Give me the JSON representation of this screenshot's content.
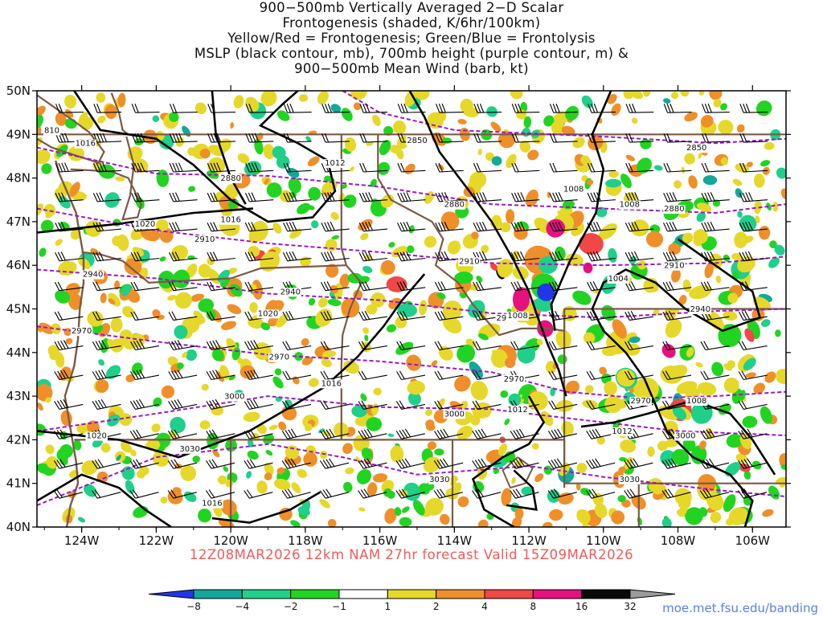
{
  "title": {
    "line1": "900−500mb Vertically Averaged 2−D Scalar",
    "line2": "Frontogenesis (shaded, K/6hr/100km)",
    "line3": "Yellow/Red = Frontogenesis;  Green/Blue = Frontolysis",
    "line4": "MSLP (black contour, mb), 700mb height (purple contour, m) &",
    "line5": "900−500mb Mean Wind (barb, kt)"
  },
  "map": {
    "lat_labels": [
      "50N",
      "49N",
      "48N",
      "47N",
      "46N",
      "45N",
      "44N",
      "43N",
      "42N",
      "41N",
      "40N"
    ],
    "lon_labels": [
      "124W",
      "122W",
      "120W",
      "118W",
      "116W",
      "114W",
      "112W",
      "110W",
      "108W",
      "106W"
    ],
    "colors": {
      "coast": "#7a5a45",
      "mslp": "#000000",
      "height": "#9a18c8"
    },
    "height_labels": [
      {
        "t": "2850",
        "lon": -115.0,
        "lat": 48.87
      },
      {
        "t": "2850",
        "lon": -107.5,
        "lat": 48.7
      },
      {
        "t": "2880",
        "lon": -120.0,
        "lat": 48.0
      },
      {
        "t": "2880",
        "lon": -114.0,
        "lat": 47.4
      },
      {
        "t": "2880",
        "lon": -108.1,
        "lat": 47.3
      },
      {
        "t": "2910",
        "lon": -120.7,
        "lat": 46.6
      },
      {
        "t": "2910",
        "lon": -113.6,
        "lat": 46.1
      },
      {
        "t": "2910",
        "lon": -108.1,
        "lat": 46.0
      },
      {
        "t": "2940",
        "lon": -123.7,
        "lat": 45.8
      },
      {
        "t": "2940",
        "lon": -118.4,
        "lat": 45.4
      },
      {
        "t": "2940",
        "lon": -112.6,
        "lat": 44.8
      },
      {
        "t": "2940",
        "lon": -107.4,
        "lat": 45.0
      },
      {
        "t": "2970",
        "lon": -124.0,
        "lat": 44.5
      },
      {
        "t": "2970",
        "lon": -118.7,
        "lat": 43.9
      },
      {
        "t": "2970",
        "lon": -112.4,
        "lat": 43.4
      },
      {
        "t": "2970",
        "lon": -109.0,
        "lat": 42.9
      },
      {
        "t": "3000",
        "lon": -119.9,
        "lat": 43.0
      },
      {
        "t": "3000",
        "lon": -114.0,
        "lat": 42.6
      },
      {
        "t": "3000",
        "lon": -107.8,
        "lat": 42.1
      },
      {
        "t": "3030",
        "lon": -121.1,
        "lat": 41.8
      },
      {
        "t": "3030",
        "lon": -114.4,
        "lat": 41.1
      },
      {
        "t": "3030",
        "lon": -109.3,
        "lat": 41.1
      }
    ],
    "mslp_labels": [
      {
        "t": "1016",
        "lon": -123.9,
        "lat": 48.8
      },
      {
        "t": "1012",
        "lon": -117.2,
        "lat": 48.35
      },
      {
        "t": "1008",
        "lon": -110.8,
        "lat": 47.75
      },
      {
        "t": "1008",
        "lon": -109.3,
        "lat": 47.4
      },
      {
        "t": "1016",
        "lon": -120.0,
        "lat": 47.05
      },
      {
        "t": "1020",
        "lon": -122.3,
        "lat": 46.95
      },
      {
        "t": "1004",
        "lon": -109.6,
        "lat": 45.7
      },
      {
        "t": "1020",
        "lon": -119.0,
        "lat": 44.9
      },
      {
        "t": "1008",
        "lon": -112.3,
        "lat": 44.85
      },
      {
        "t": "1016",
        "lon": -117.3,
        "lat": 43.3
      },
      {
        "t": "1012",
        "lon": -112.3,
        "lat": 42.7
      },
      {
        "t": "1008",
        "lon": -107.5,
        "lat": 42.9
      },
      {
        "t": "1012",
        "lon": -109.5,
        "lat": 42.2
      },
      {
        "t": "1020",
        "lon": -123.6,
        "lat": 42.1
      },
      {
        "t": "1016",
        "lon": -120.5,
        "lat": 40.55
      },
      {
        "t": "810",
        "lon": -124.8,
        "lat": 49.1
      }
    ]
  },
  "footer": "12Z08MAR2026 12km NAM 27hr forecast Valid 15Z09MAR2026",
  "colorbar": {
    "labels": [
      "−8",
      "−4",
      "−2",
      "−1",
      "1",
      "2",
      "4",
      "8",
      "16",
      "32"
    ],
    "colors": [
      "#1f37e8",
      "#12a89a",
      "#1fcf8a",
      "#22d422",
      "#ffffff",
      "#e6d82a",
      "#ef8f2a",
      "#f04747",
      "#e6117f",
      "#0a0a0a",
      "#9b9b9b"
    ]
  },
  "credit": "moe.met.fsu.edu/banding"
}
